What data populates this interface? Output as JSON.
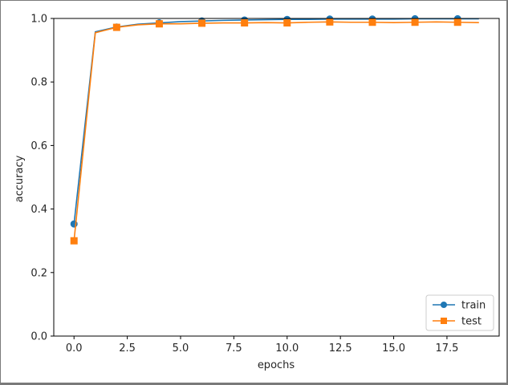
{
  "chart_data": {
    "type": "line",
    "title": "",
    "xlabel": "epochs",
    "ylabel": "accuracy",
    "xlim": [
      -0.95,
      19.95
    ],
    "ylim": [
      0,
      1.0
    ],
    "x": [
      0,
      1,
      2,
      3,
      4,
      5,
      6,
      7,
      8,
      9,
      10,
      11,
      12,
      13,
      14,
      15,
      16,
      17,
      18,
      19
    ],
    "xticks": [
      0.0,
      2.5,
      5.0,
      7.5,
      10.0,
      12.5,
      15.0,
      17.5
    ],
    "xtick_labels": [
      "0.0",
      "2.5",
      "5.0",
      "7.5",
      "10.0",
      "12.5",
      "15.0",
      "17.5"
    ],
    "yticks": [
      0.0,
      0.2,
      0.4,
      0.6,
      0.8,
      1.0
    ],
    "ytick_labels": [
      "0.0",
      "0.2",
      "0.4",
      "0.6",
      "0.8",
      "1.0"
    ],
    "series": [
      {
        "name": "train",
        "color": "#1f77b4",
        "marker": "circle",
        "marker_every": 2,
        "values": [
          0.353,
          0.958,
          0.973,
          0.982,
          0.986,
          0.99,
          0.992,
          0.994,
          0.995,
          0.996,
          0.997,
          0.997,
          0.998,
          0.998,
          0.998,
          0.998,
          0.999,
          0.999,
          0.999,
          0.999
        ]
      },
      {
        "name": "test",
        "color": "#ff7f0e",
        "marker": "square",
        "marker_every": 2,
        "values": [
          0.3,
          0.955,
          0.972,
          0.98,
          0.983,
          0.983,
          0.985,
          0.986,
          0.986,
          0.987,
          0.986,
          0.988,
          0.989,
          0.988,
          0.988,
          0.987,
          0.988,
          0.989,
          0.988,
          0.987
        ]
      }
    ],
    "legend_position": "bottom-right",
    "grid": false
  }
}
